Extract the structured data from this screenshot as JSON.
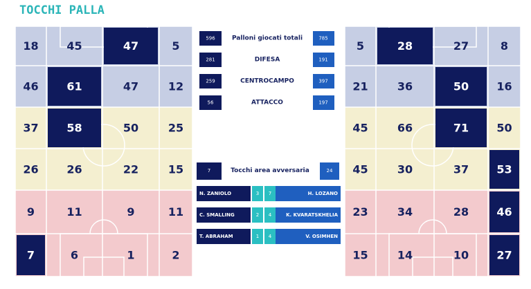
{
  "title": "TOCCHI PALLA",
  "left_grid": [
    [
      18,
      45,
      47,
      5
    ],
    [
      46,
      61,
      47,
      12
    ],
    [
      37,
      58,
      50,
      25
    ],
    [
      26,
      26,
      22,
      15
    ],
    [
      9,
      11,
      9,
      11
    ],
    [
      7,
      6,
      1,
      2
    ]
  ],
  "right_grid": [
    [
      5,
      28,
      27,
      8
    ],
    [
      21,
      36,
      50,
      16
    ],
    [
      45,
      66,
      71,
      50
    ],
    [
      45,
      30,
      37,
      53
    ],
    [
      23,
      34,
      28,
      46
    ],
    [
      15,
      14,
      10,
      27
    ]
  ],
  "stats": [
    {
      "left": 596,
      "label": "Palloni giocati totali",
      "right": 785
    },
    {
      "left": 281,
      "label": "DIFESA",
      "right": 191
    },
    {
      "left": 259,
      "label": "CENTROCAMPO",
      "right": 397
    },
    {
      "left": 56,
      "label": "ATTACCO",
      "right": 197
    }
  ],
  "area": {
    "left": 7,
    "label": "Tocchi area avversaria",
    "right": 24
  },
  "players": [
    {
      "left_name": "N. ZANIOLO",
      "left_value": 3,
      "right_value": 7,
      "right_name": "H. LOZANO"
    },
    {
      "left_name": "C. SMALLING",
      "left_value": 2,
      "right_value": 4,
      "right_name": "K. KVARATSKHELIA"
    },
    {
      "left_name": "T. ABRAHAM",
      "left_value": 1,
      "right_value": 4,
      "right_name": "V. OSIMHEN"
    }
  ]
}
